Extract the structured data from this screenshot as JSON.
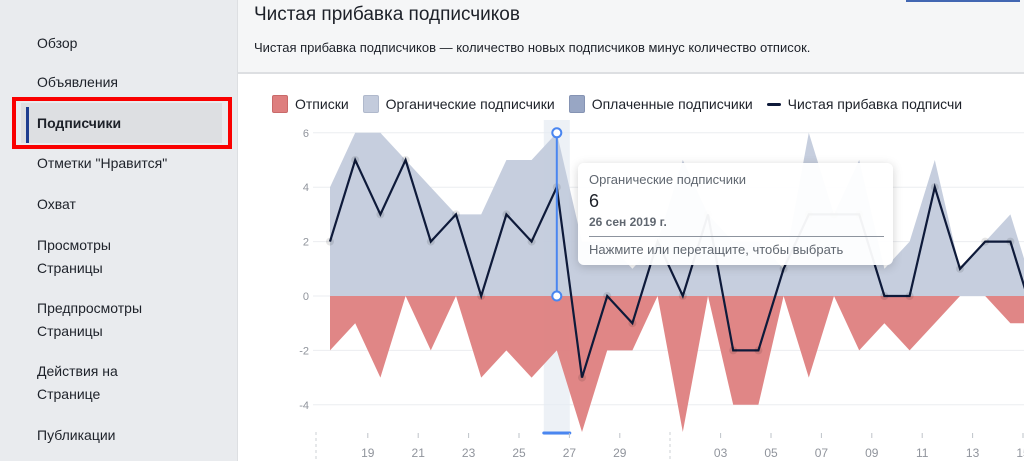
{
  "sidebar": {
    "items": [
      {
        "label": "Обзор"
      },
      {
        "label": "Объявления"
      },
      {
        "label": "Подписчики",
        "active": true
      },
      {
        "label": "Отметки \"Нравится\""
      },
      {
        "label": "Охват"
      },
      {
        "label": "Просмотры Страницы"
      },
      {
        "label": "Предпросмотры Страницы"
      },
      {
        "label": "Действия на Странице"
      },
      {
        "label": "Публикации"
      }
    ]
  },
  "header": {
    "title": "Чистая прибавка подписчиков",
    "description": "Чистая прибавка подписчиков — количество новых подписчиков минус количество отписок."
  },
  "tooltip": {
    "series": "Органические подписчики",
    "value": "6",
    "date": "26 сен 2019 г.",
    "hint": "Нажмите или перетащите, чтобы выбрать"
  },
  "colors": {
    "unsubscribes": "#de7f7f",
    "organic": "#c3cbdc",
    "paid": "#98a6c4",
    "net": "#0e1a3a",
    "accent": "#4a86f0"
  },
  "chart_data": {
    "type": "area",
    "legend": [
      "Отписки",
      "Органические подписчики",
      "Оплаченные подписчики",
      "Чистая прибавка подписчи"
    ],
    "legend_placement": "top",
    "x": [
      "2019-09-17",
      "2019-09-18",
      "2019-09-19",
      "2019-09-20",
      "2019-09-21",
      "2019-09-22",
      "2019-09-23",
      "2019-09-24",
      "2019-09-25",
      "2019-09-26",
      "2019-09-27",
      "2019-09-28",
      "2019-09-29",
      "2019-09-30",
      "2019-10-01",
      "2019-10-02",
      "2019-10-03",
      "2019-10-04",
      "2019-10-05",
      "2019-10-06",
      "2019-10-07",
      "2019-10-08",
      "2019-10-09",
      "2019-10-10",
      "2019-10-11",
      "2019-10-12",
      "2019-10-13",
      "2019-10-14",
      "2019-10-15"
    ],
    "x_tick_labels": [
      "19",
      "21",
      "23",
      "25",
      "27",
      "29",
      "03",
      "05",
      "07",
      "09",
      "11",
      "13",
      "15"
    ],
    "y_ticks": [
      6,
      4,
      2,
      0,
      -2,
      -4
    ],
    "ylim": [
      -6,
      6
    ],
    "grid": true,
    "series": [
      {
        "name": "Отписки",
        "values": [
          -2,
          -1,
          -3,
          0,
          -2,
          0,
          -3,
          -2,
          -3,
          -2,
          -5,
          -2,
          -2,
          0,
          -5,
          0,
          -4,
          -4,
          0,
          -3,
          0,
          -2,
          -1,
          -2,
          -1,
          0,
          0,
          -1,
          -1
        ]
      },
      {
        "name": "Органические подписчики",
        "values": [
          4,
          6,
          6,
          5,
          4,
          3,
          3,
          5,
          5,
          6,
          2,
          2,
          1,
          2,
          5,
          3,
          2,
          2,
          1,
          6,
          3,
          5,
          1,
          2,
          5,
          1,
          2,
          3,
          0
        ]
      },
      {
        "name": "Оплаченные подписчики",
        "values": [
          0,
          0,
          0,
          0,
          0,
          0,
          0,
          0,
          0,
          0,
          0,
          0,
          0,
          0,
          0,
          0,
          0,
          0,
          0,
          0,
          0,
          0,
          0,
          0,
          0,
          0,
          0,
          0,
          0
        ]
      },
      {
        "name": "Чистая прибавка подписчи",
        "values": [
          2,
          5,
          3,
          5,
          2,
          3,
          0,
          3,
          2,
          4,
          -3,
          0,
          -1,
          2,
          0,
          3,
          -2,
          -2,
          1,
          3,
          3,
          3,
          0,
          0,
          4,
          1,
          2,
          2,
          -1
        ]
      }
    ],
    "selected_index": 9
  }
}
